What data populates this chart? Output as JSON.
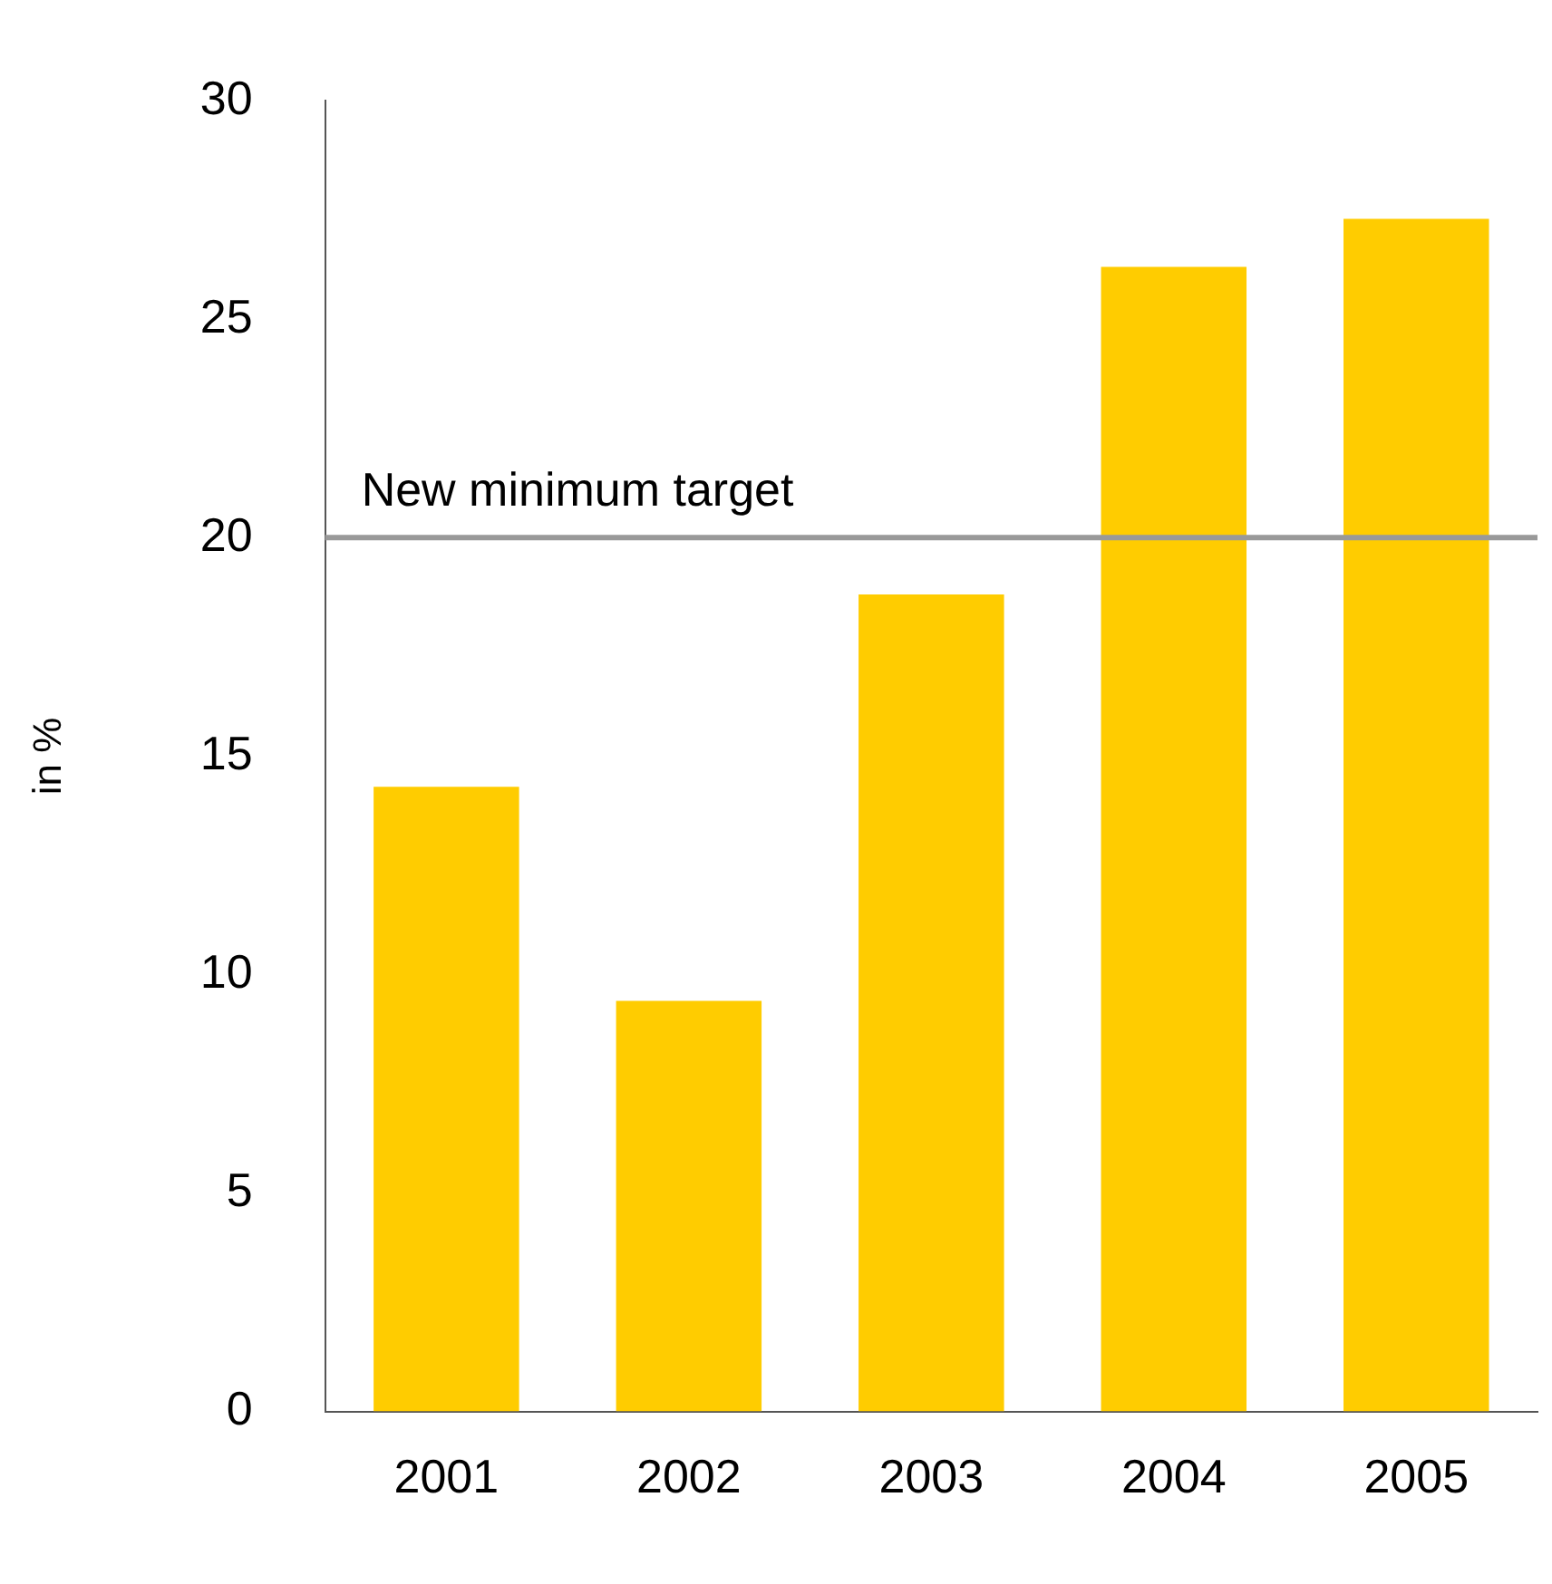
{
  "chart_data": {
    "type": "bar",
    "ylabel": "in %",
    "categories": [
      "2001",
      "2002",
      "2003",
      "2004",
      "2005"
    ],
    "values": [
      14.3,
      9.4,
      18.7,
      26.2,
      27.3
    ],
    "color": "#ffcc00",
    "ylim": [
      0,
      30
    ],
    "yticks": [
      0,
      5,
      10,
      15,
      20,
      25,
      30
    ],
    "grid": false,
    "legend": false,
    "ref_lines": [
      {
        "axis": "y",
        "value": 20,
        "label": "New minimum target",
        "color": "#999999"
      }
    ]
  }
}
